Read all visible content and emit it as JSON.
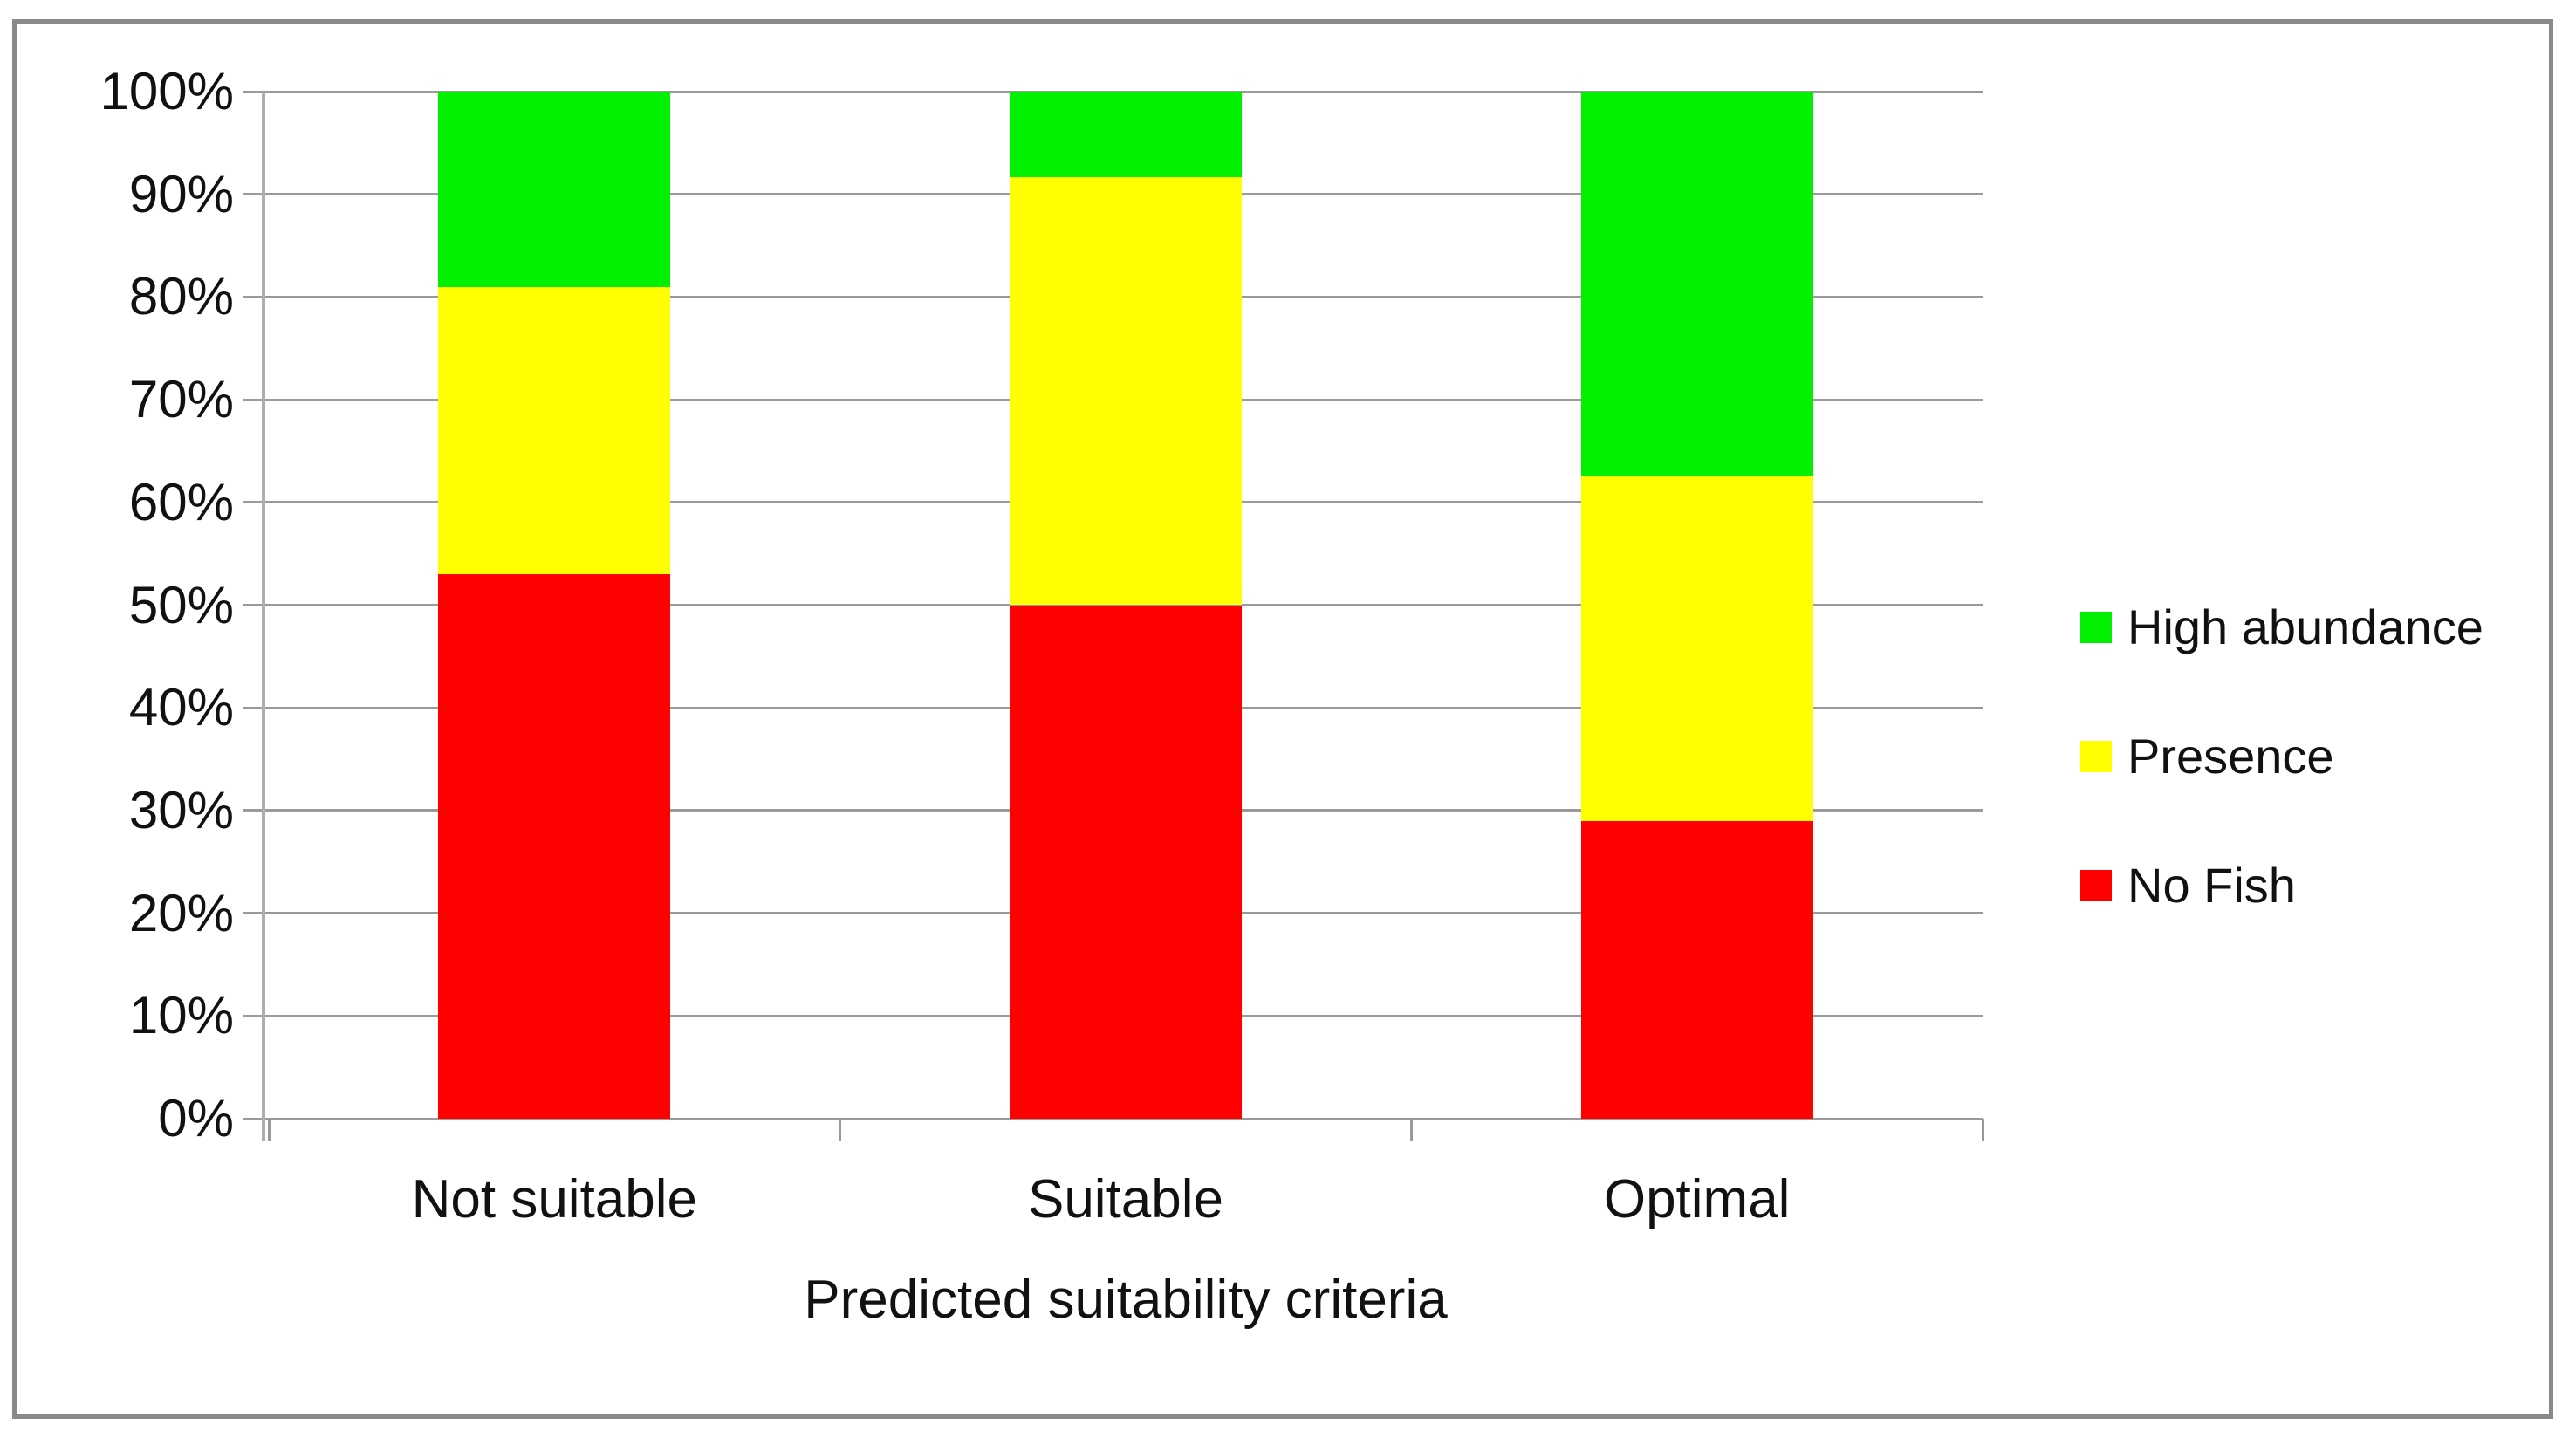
{
  "chart_data": {
    "type": "bar",
    "subtype": "stacked-100-percent",
    "title": "",
    "xlabel": "Predicted suitability criteria",
    "ylabel": "",
    "categories": [
      "Not suitable",
      "Suitable",
      "Optimal"
    ],
    "series": [
      {
        "name": "No Fish",
        "color": "#fe0000",
        "values": [
          53,
          50,
          29
        ]
      },
      {
        "name": "Presence",
        "color": "#ffff00",
        "values": [
          28,
          41.7,
          33.5
        ]
      },
      {
        "name": "High abundance",
        "color": "#00f000",
        "values": [
          19,
          8.3,
          37.5
        ]
      }
    ],
    "y_ticks": [
      "0%",
      "10%",
      "20%",
      "30%",
      "40%",
      "50%",
      "60%",
      "70%",
      "80%",
      "90%",
      "100%"
    ],
    "ylim": [
      0,
      100
    ],
    "grid": true,
    "legend": {
      "position": "right",
      "items": [
        "High abundance",
        "Presence",
        "No Fish"
      ]
    }
  },
  "frame": {
    "border_color": "#8a8a8a",
    "gridline_color": "#9a9a9a",
    "axis_line_color": "#aeaeae",
    "background": "#ffffff"
  }
}
